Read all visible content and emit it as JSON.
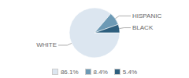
{
  "chart_data": {
    "type": "pie",
    "categories": [
      "WHITE",
      "HISPANIC",
      "BLACK"
    ],
    "values": [
      86.1,
      8.4,
      5.4
    ],
    "value_labels": [
      "86.1%",
      "8.4%",
      "5.4%"
    ],
    "colors": [
      "#dce6f0",
      "#6d9ab5",
      "#2e5f7e"
    ],
    "legend": "bottom"
  }
}
